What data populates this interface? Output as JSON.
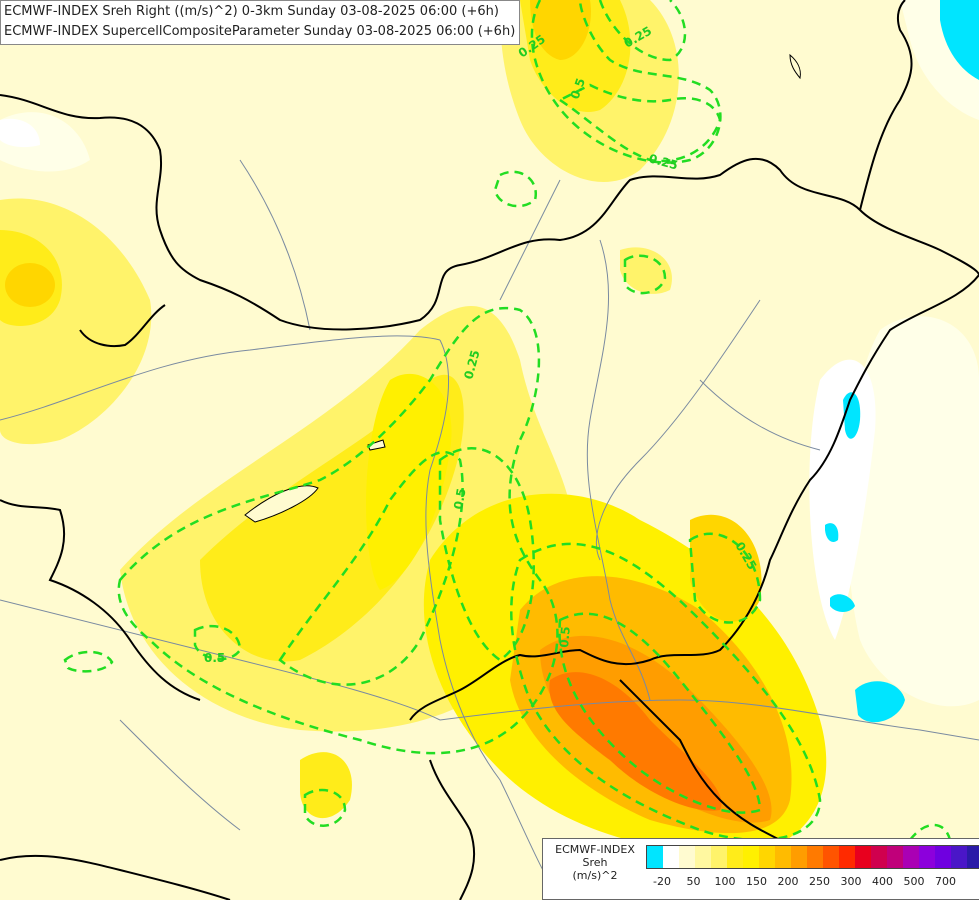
{
  "header": {
    "line1": "ECMWF-INDEX Sreh Right ((m/s)^2) 0-3km Sunday 03-08-2025 06:00 (+6h)",
    "line2": "ECMWF-INDEX SupercellCompositeParameter Sunday 03-08-2025 06:00 (+6h)"
  },
  "contour_labels": [
    {
      "text": "0.25",
      "id": "n1"
    },
    {
      "text": "0.25",
      "id": "n2"
    },
    {
      "text": "0.5",
      "id": "n3"
    },
    {
      "text": "0.25",
      "id": "n4"
    },
    {
      "text": "0.5",
      "id": "c1"
    },
    {
      "text": "0.25",
      "id": "c2"
    },
    {
      "text": "0.5",
      "id": "w1"
    },
    {
      "text": "0.5",
      "id": "s1"
    },
    {
      "text": "0.25",
      "id": "e1"
    }
  ],
  "legend": {
    "title_line1": "ECMWF-INDEX",
    "title_line2": "Sreh",
    "title_line3": "(m/s)^2",
    "swatches": [
      "#00e5ff",
      "#ffffff",
      "#fffbd0",
      "#fff8a0",
      "#fff36a",
      "#ffec1a",
      "#fff000",
      "#ffd600",
      "#ffbb00",
      "#ff9d00",
      "#ff7a00",
      "#ff5400",
      "#ff2a00",
      "#e8001e",
      "#d0004e",
      "#c0007a",
      "#aa00b4",
      "#8c00dc",
      "#6f00e0",
      "#4a16c8",
      "#2a1aa8",
      "#101088"
    ],
    "tick_labels": [
      "-20",
      "50",
      "100",
      "150",
      "200",
      "250",
      "300",
      "400",
      "500",
      "700"
    ]
  },
  "colors": {
    "background": "#fffbd0",
    "contour": "#22dd22",
    "border": "#000000",
    "river": "#7a8aa0"
  }
}
